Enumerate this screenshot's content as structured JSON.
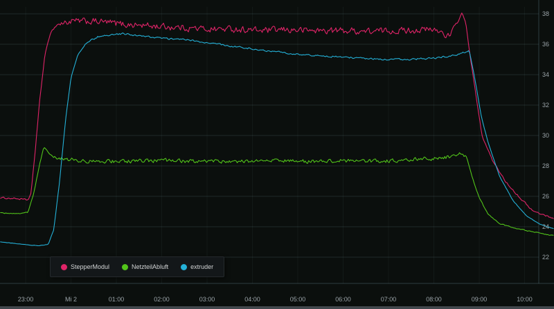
{
  "panel": {
    "background": "#0b0f0d"
  },
  "colors": {
    "grid": "rgba(130,170,185,0.17)",
    "axis_line": "rgba(130,170,185,0.30)",
    "vgrid": "rgba(120,160,170,0.08)",
    "axis_text": "#9aa3a8",
    "legend_text": "#d3d5d6",
    "scrollbar": "#41474c"
  },
  "y_axis": {
    "labels": [
      "38",
      "36",
      "34",
      "32",
      "30",
      "28",
      "26",
      "24",
      "22"
    ]
  },
  "x_axis": {
    "labels": [
      "23:00",
      "Mi 2",
      "01:00",
      "02:00",
      "03:00",
      "04:00",
      "05:00",
      "06:00",
      "07:00",
      "08:00",
      "09:00",
      "10:00"
    ]
  },
  "chart_data": {
    "type": "line",
    "title": "",
    "xlabel": "",
    "ylabel": "",
    "x_unit": "hours since 23:00",
    "x_tick_hours": [
      0,
      1,
      2,
      3,
      4,
      5,
      6,
      7,
      8,
      9,
      10,
      11
    ],
    "x_tick_labels": [
      "23:00",
      "Mi 2",
      "01:00",
      "02:00",
      "03:00",
      "04:00",
      "05:00",
      "06:00",
      "07:00",
      "08:00",
      "09:00",
      "10:00"
    ],
    "ylim": [
      22,
      38
    ],
    "y_ticks": [
      38,
      36,
      34,
      32,
      30,
      28,
      26,
      24,
      22
    ],
    "grid": true,
    "legend_position": "bottom-left",
    "series": [
      {
        "name": "StepperModul",
        "color": "#e02468",
        "noise_amp": 0.3,
        "noise_window": [
          0.75,
          9.5
        ],
        "points": [
          [
            -0.56,
            25.9
          ],
          [
            -0.2,
            25.85
          ],
          [
            0.05,
            25.75
          ],
          [
            0.12,
            26.2
          ],
          [
            0.2,
            28.6
          ],
          [
            0.3,
            32.0
          ],
          [
            0.42,
            35.2
          ],
          [
            0.55,
            36.8
          ],
          [
            0.7,
            37.3
          ],
          [
            1.0,
            37.5
          ],
          [
            1.6,
            37.5
          ],
          [
            2.2,
            37.3
          ],
          [
            2.8,
            37.2
          ],
          [
            3.4,
            37.1
          ],
          [
            4.0,
            37.0
          ],
          [
            4.6,
            37.0
          ],
          [
            5.2,
            36.9
          ],
          [
            5.8,
            36.95
          ],
          [
            6.4,
            36.9
          ],
          [
            7.0,
            36.9
          ],
          [
            7.6,
            36.85
          ],
          [
            8.2,
            36.9
          ],
          [
            8.8,
            36.95
          ],
          [
            9.1,
            36.9
          ],
          [
            9.35,
            36.5
          ],
          [
            9.5,
            37.3
          ],
          [
            9.62,
            38.05
          ],
          [
            9.7,
            37.5
          ],
          [
            9.8,
            35.2
          ],
          [
            9.95,
            32.2
          ],
          [
            10.06,
            30.0
          ],
          [
            10.3,
            28.3
          ],
          [
            10.6,
            26.9
          ],
          [
            10.9,
            25.9
          ],
          [
            11.2,
            25.0
          ],
          [
            11.45,
            24.75
          ],
          [
            11.66,
            24.55
          ]
        ]
      },
      {
        "name": "NetzteilAbluft",
        "color": "#52c41a",
        "noise_amp": 0.17,
        "noise_window": [
          0.55,
          9.7
        ],
        "points": [
          [
            -0.56,
            24.9
          ],
          [
            -0.1,
            24.85
          ],
          [
            0.05,
            24.95
          ],
          [
            0.18,
            26.2
          ],
          [
            0.3,
            28.0
          ],
          [
            0.4,
            29.25
          ],
          [
            0.5,
            28.9
          ],
          [
            0.62,
            28.55
          ],
          [
            0.85,
            28.45
          ],
          [
            1.4,
            28.3
          ],
          [
            2.2,
            28.3
          ],
          [
            3.0,
            28.35
          ],
          [
            3.8,
            28.3
          ],
          [
            4.6,
            28.3
          ],
          [
            5.4,
            28.35
          ],
          [
            6.2,
            28.3
          ],
          [
            7.0,
            28.35
          ],
          [
            7.8,
            28.3
          ],
          [
            8.6,
            28.45
          ],
          [
            9.1,
            28.5
          ],
          [
            9.45,
            28.65
          ],
          [
            9.62,
            28.85
          ],
          [
            9.72,
            28.6
          ],
          [
            9.85,
            27.2
          ],
          [
            10.0,
            25.9
          ],
          [
            10.2,
            24.8
          ],
          [
            10.45,
            24.2
          ],
          [
            10.8,
            23.9
          ],
          [
            11.2,
            23.65
          ],
          [
            11.66,
            23.4
          ]
        ]
      },
      {
        "name": "extruder",
        "color": "#24b1d8",
        "noise_amp": 0.08,
        "noise_window": [
          1.3,
          9.75
        ],
        "points": [
          [
            -0.56,
            23.0
          ],
          [
            -0.25,
            22.9
          ],
          [
            0.05,
            22.8
          ],
          [
            0.3,
            22.75
          ],
          [
            0.5,
            22.85
          ],
          [
            0.62,
            23.8
          ],
          [
            0.75,
            27.0
          ],
          [
            0.88,
            31.0
          ],
          [
            1.0,
            33.8
          ],
          [
            1.15,
            35.3
          ],
          [
            1.35,
            36.1
          ],
          [
            1.6,
            36.5
          ],
          [
            1.9,
            36.6
          ],
          [
            2.15,
            36.7
          ],
          [
            2.5,
            36.55
          ],
          [
            3.0,
            36.4
          ],
          [
            3.5,
            36.3
          ],
          [
            4.0,
            36.1
          ],
          [
            4.5,
            35.9
          ],
          [
            5.0,
            35.7
          ],
          [
            5.5,
            35.5
          ],
          [
            6.0,
            35.35
          ],
          [
            6.5,
            35.25
          ],
          [
            7.0,
            35.15
          ],
          [
            7.5,
            35.05
          ],
          [
            8.0,
            35.0
          ],
          [
            8.5,
            35.0
          ],
          [
            9.0,
            35.1
          ],
          [
            9.35,
            35.2
          ],
          [
            9.6,
            35.4
          ],
          [
            9.78,
            35.6
          ],
          [
            9.9,
            33.8
          ],
          [
            10.05,
            31.2
          ],
          [
            10.2,
            29.5
          ],
          [
            10.45,
            27.3
          ],
          [
            10.75,
            25.7
          ],
          [
            11.05,
            24.7
          ],
          [
            11.35,
            24.15
          ],
          [
            11.66,
            23.85
          ]
        ]
      }
    ]
  }
}
